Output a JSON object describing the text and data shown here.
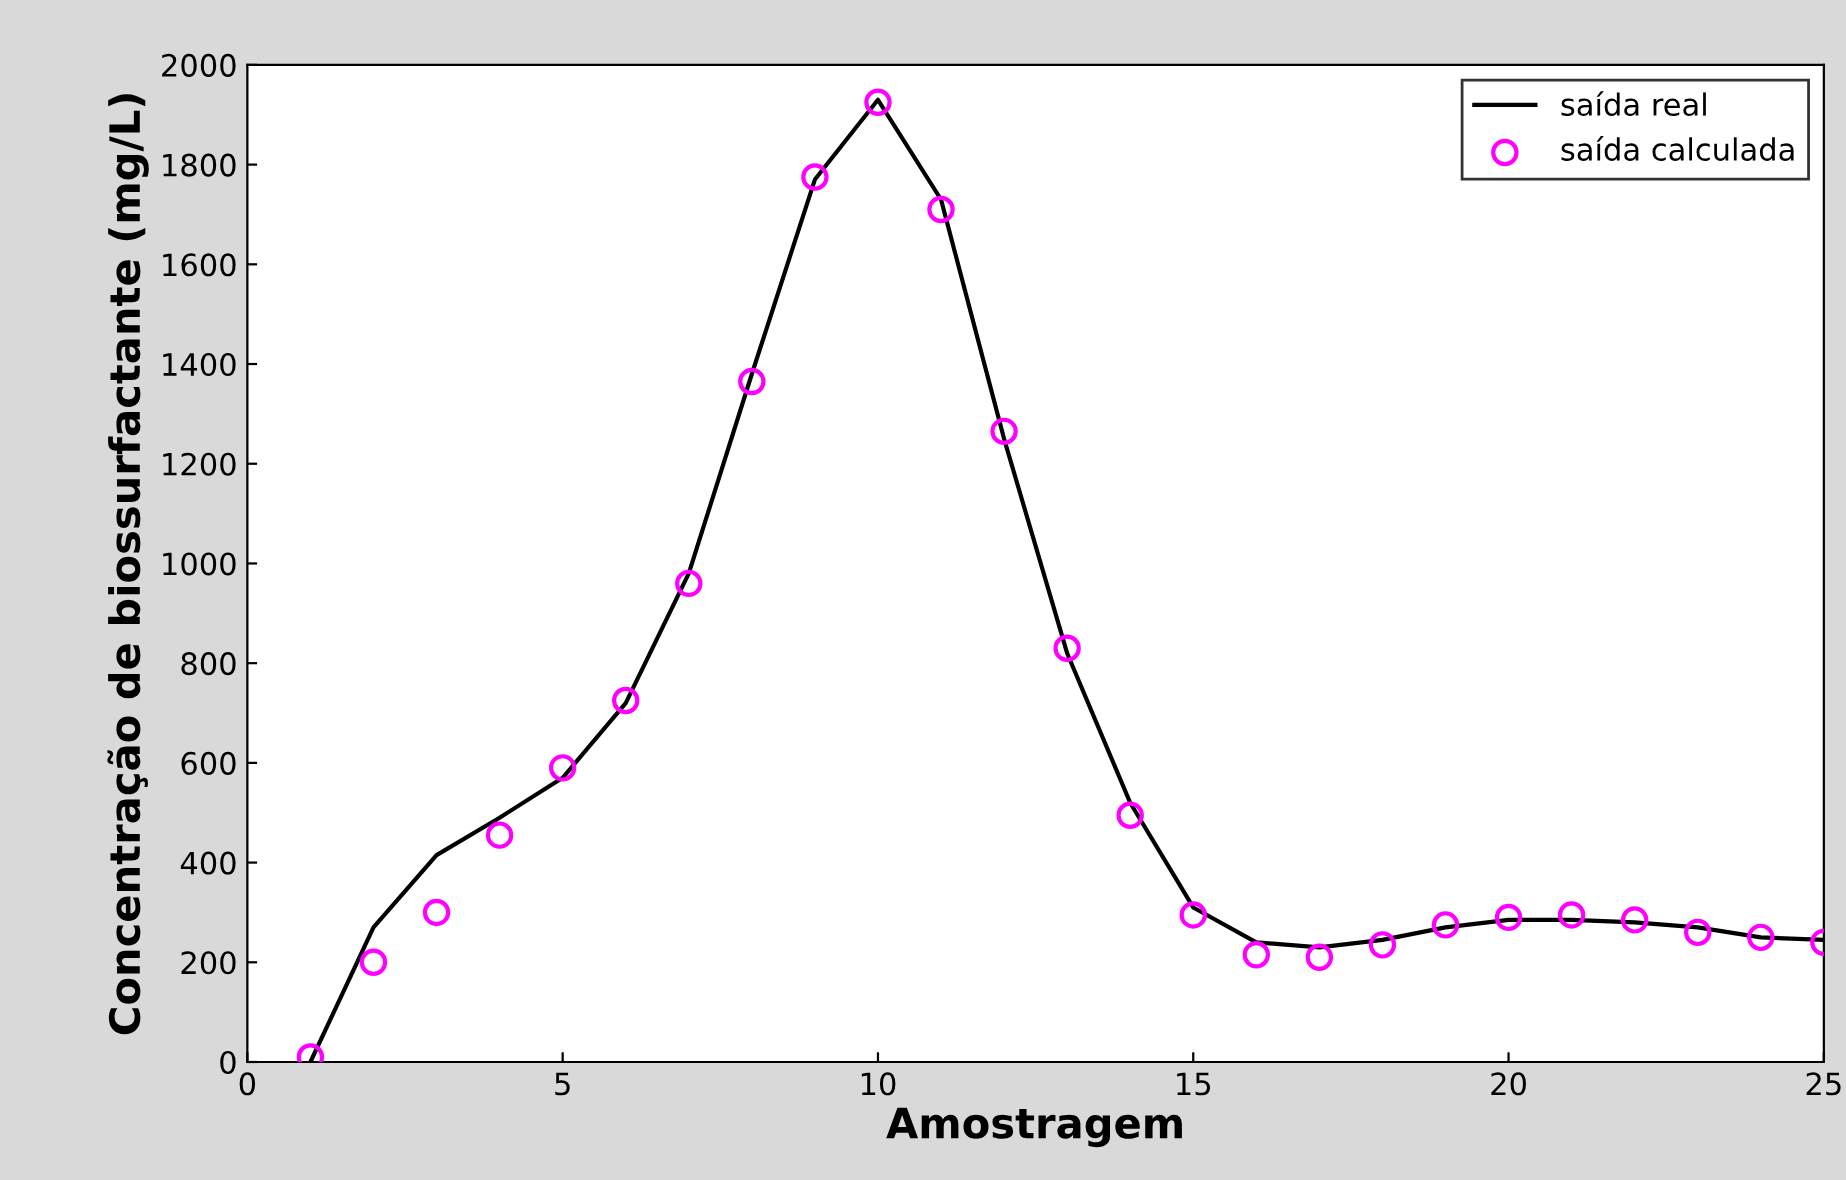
{
  "chart_data": {
    "type": "line",
    "xlabel": "Amostragem",
    "ylabel": "Concentração de biossurfactante (mg/L)",
    "x": [
      1,
      2,
      3,
      4,
      5,
      6,
      7,
      8,
      9,
      10,
      11,
      12,
      13,
      14,
      15,
      16,
      17,
      18,
      19,
      20,
      21,
      22,
      23,
      24,
      25
    ],
    "series": [
      {
        "name": "saída real",
        "color": "#000000",
        "marker": "none",
        "values": [
          0,
          270,
          415,
          490,
          570,
          720,
          980,
          1380,
          1770,
          1930,
          1730,
          1250,
          820,
          520,
          310,
          240,
          230,
          245,
          270,
          285,
          285,
          280,
          270,
          250,
          245
        ]
      },
      {
        "name": "saída calculada",
        "color": "#ff00ff",
        "type": "scatter",
        "marker": "circle",
        "values": [
          10,
          200,
          300,
          455,
          590,
          725,
          960,
          1365,
          1775,
          1925,
          1710,
          1265,
          830,
          495,
          295,
          215,
          210,
          235,
          275,
          290,
          295,
          285,
          260,
          250,
          240
        ]
      }
    ],
    "xlim": [
      0,
      25
    ],
    "xticks": [
      0,
      5,
      10,
      15,
      20,
      25
    ],
    "ylim": [
      0,
      2000
    ],
    "yticks": [
      0,
      200,
      400,
      600,
      800,
      1000,
      1200,
      1400,
      1600,
      1800,
      2000
    ],
    "grid": false,
    "legend": "top right"
  }
}
